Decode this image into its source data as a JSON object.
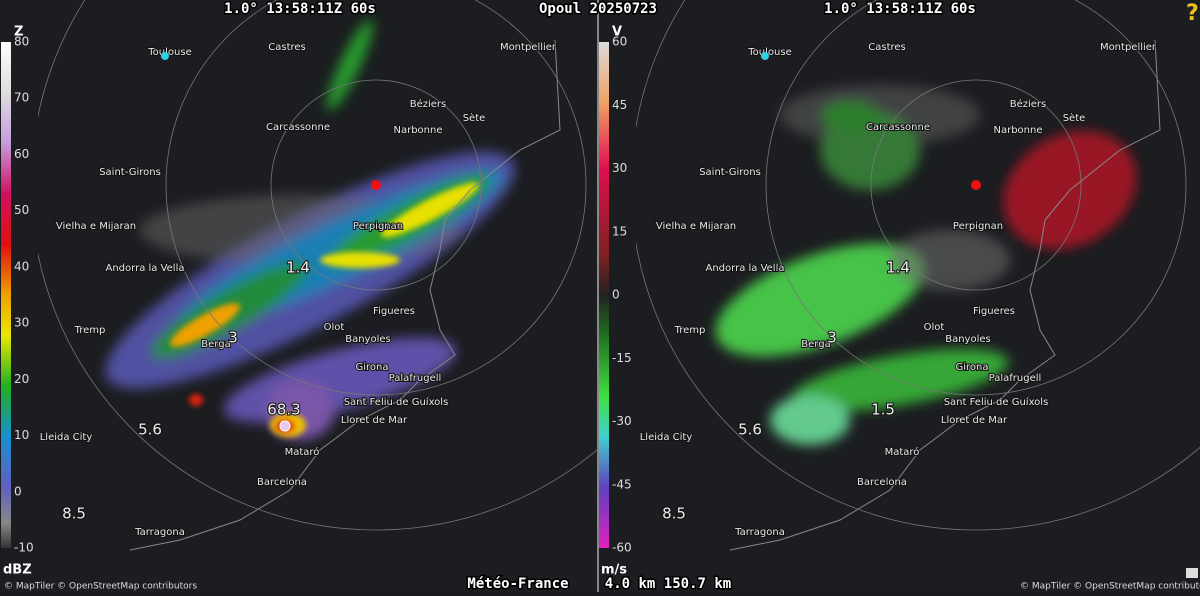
{
  "header": {
    "left": "1.0° 13:58:11Z 60s",
    "station": "Opoul 20250723",
    "right": "1.0° 13:58:11Z 60s"
  },
  "panels": [
    {
      "scale": {
        "symbol": "Z",
        "unit": "dBZ",
        "labels": [
          "80",
          "70",
          "60",
          "50",
          "40",
          "30",
          "20",
          "10",
          "0",
          "-10"
        ]
      },
      "range_labels": [
        "1.4",
        "3",
        "5.6",
        "8.5"
      ],
      "peak": "68.3"
    },
    {
      "scale": {
        "symbol": "V",
        "unit": "m/s",
        "labels": [
          "60",
          "45",
          "30",
          "15",
          "0",
          "-15",
          "-30",
          "-45",
          "-60"
        ]
      },
      "range_labels": [
        "1.4",
        "3",
        "1.5",
        "5.6",
        "8.5"
      ]
    }
  ],
  "places": [
    "Toulouse",
    "Castres",
    "Montpellier",
    "Carcassonne",
    "Béziers",
    "Sète",
    "Narbonne",
    "Saint-Girons",
    "Perpignan",
    "Vielha e Mijaran",
    "Andorra la Vella",
    "Tremp",
    "Olot",
    "Figueres",
    "Banyoles",
    "Berga",
    "Girona",
    "Palafrugell",
    "Sant Feliu de Guíxols",
    "Lloret de Mar",
    "Lleida City",
    "Mataró",
    "Barcelona",
    "Tarragona"
  ],
  "footer": {
    "source": "Météo-France",
    "range": "4.0 km 150.7 km",
    "attribution": "© MapTiler © OpenStreetMap contributors"
  }
}
